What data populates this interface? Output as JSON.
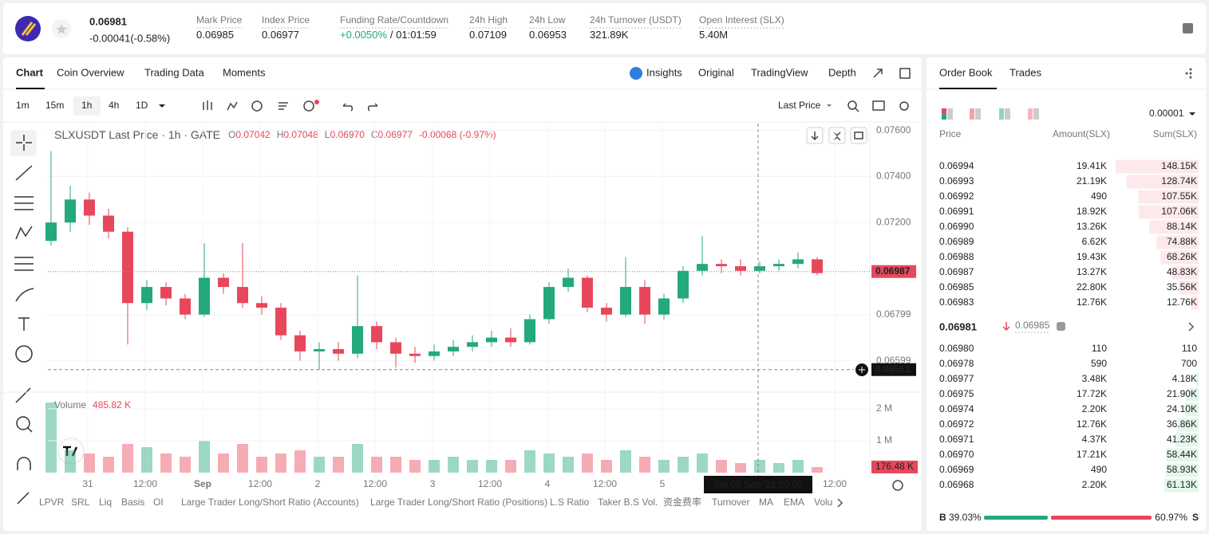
{
  "header": {
    "price": "0.06981",
    "change": "-0.00041(-0.58%)",
    "stats": [
      {
        "label": "Mark Price",
        "value": "0.06985"
      },
      {
        "label": "Index Price",
        "value": "0.06977"
      },
      {
        "label": "Funding Rate/Countdown",
        "value": "+0.0050%",
        "extra": "/ 01:01:59"
      },
      {
        "label": "24h High",
        "value": "0.07109"
      },
      {
        "label": "24h Low",
        "value": "0.06953"
      },
      {
        "label": "24h Turnover (USDT)",
        "value": "321.89K"
      },
      {
        "label": "Open Interest (SLX)",
        "value": "5.40M"
      }
    ]
  },
  "tabs": {
    "left": [
      "Chart",
      "Coin Overview",
      "Trading Data",
      "Moments"
    ],
    "right": [
      "Insights",
      "Original",
      "TradingView",
      "Depth"
    ]
  },
  "toolbar": {
    "intervals": [
      "1m",
      "15m",
      "1h",
      "4h",
      "1D"
    ],
    "price_source": "Last Price"
  },
  "chart_data": {
    "type": "candlestick",
    "title": "SLXUSDT Last Price · 1h · GATE",
    "ohlc_legend": [
      {
        "label": "O",
        "value": "0.07042"
      },
      {
        "label": "H",
        "value": "0.07048"
      },
      {
        "label": "L",
        "value": "0.06970"
      },
      {
        "label": "C",
        "value": "0.06977"
      }
    ],
    "legend_change": "-0.00068 (-0.97%)",
    "open": [
      0.0712,
      0.072,
      0.073,
      0.0723,
      0.0716,
      0.0685,
      0.0692,
      0.0687,
      0.068,
      0.0696,
      0.0692,
      0.0685,
      0.0683,
      0.0671,
      0.0664,
      0.0665,
      0.0663,
      0.0675,
      0.0668,
      0.0663,
      0.0662,
      0.0664,
      0.0666,
      0.0668,
      0.067,
      0.0668,
      0.0678,
      0.0692,
      0.0696,
      0.0683,
      0.068,
      0.0692,
      0.068,
      0.0687,
      0.0699,
      0.0702,
      0.0701,
      0.0699,
      0.0701,
      0.0702,
      0.0704
    ],
    "high": [
      0.0751,
      0.0736,
      0.0733,
      0.0726,
      0.0718,
      0.0695,
      0.0694,
      0.0689,
      0.0711,
      0.0698,
      0.0711,
      0.0688,
      0.0685,
      0.0673,
      0.0668,
      0.0668,
      0.0697,
      0.0677,
      0.067,
      0.0666,
      0.0667,
      0.0669,
      0.0671,
      0.0673,
      0.0674,
      0.068,
      0.0694,
      0.07,
      0.0697,
      0.0685,
      0.0705,
      0.0695,
      0.0689,
      0.0701,
      0.0714,
      0.0704,
      0.0704,
      0.0703,
      0.0704,
      0.0707,
      0.0705
    ],
    "low": [
      0.071,
      0.0716,
      0.0719,
      0.0713,
      0.0667,
      0.0682,
      0.0684,
      0.0678,
      0.0679,
      0.0689,
      0.0683,
      0.068,
      0.0669,
      0.066,
      0.0656,
      0.066,
      0.0661,
      0.0665,
      0.0657,
      0.0659,
      0.066,
      0.0662,
      0.0664,
      0.0666,
      0.0666,
      0.0667,
      0.0676,
      0.069,
      0.0681,
      0.0677,
      0.0679,
      0.0676,
      0.0678,
      0.0685,
      0.0697,
      0.0698,
      0.0697,
      0.0698,
      0.0699,
      0.07,
      0.0697
    ],
    "close": [
      0.072,
      0.073,
      0.0723,
      0.0716,
      0.0685,
      0.0692,
      0.0687,
      0.068,
      0.0696,
      0.0692,
      0.0685,
      0.0683,
      0.0671,
      0.0664,
      0.0665,
      0.0663,
      0.0675,
      0.0668,
      0.0663,
      0.0662,
      0.0664,
      0.0666,
      0.0668,
      0.067,
      0.0668,
      0.0678,
      0.0692,
      0.0696,
      0.0683,
      0.068,
      0.0692,
      0.068,
      0.0687,
      0.0699,
      0.0702,
      0.0701,
      0.0699,
      0.0701,
      0.0702,
      0.0704,
      0.0698
    ],
    "colors": {
      "up": "#23a97a",
      "down": "#e8475b"
    },
    "ylim": [
      0.0647,
      0.0763
    ],
    "yticks": [
      {
        "value": 0.076,
        "label": "0.07600"
      },
      {
        "value": 0.074,
        "label": "0.07400"
      },
      {
        "value": 0.072,
        "label": "0.07200"
      },
      0.06799,
      0.06599
    ],
    "grid": true,
    "price_tags": [
      {
        "value": 0.06987,
        "label": "0.06987"
      },
      {
        "value": 0.06561,
        "label": "0.06561"
      }
    ],
    "x_labels": [
      "31",
      "12:00",
      "Sep",
      "12:00",
      "2",
      "12:00",
      "3",
      "12:00",
      "4",
      "12:00",
      "5",
      null,
      null,
      "12:00"
    ],
    "crosshair_label": "Sat 05 Sep '26  20:00",
    "volume": {
      "title": "Volume",
      "current": "485.82 K",
      "values": [
        2200000,
        700000,
        600000,
        500000,
        900000,
        800000,
        600000,
        500000,
        1000000,
        600000,
        900000,
        500000,
        600000,
        700000,
        500000,
        500000,
        900000,
        500000,
        500000,
        400000,
        400000,
        500000,
        400000,
        400000,
        400000,
        700000,
        600000,
        500000,
        600000,
        400000,
        700000,
        500000,
        400000,
        500000,
        600000,
        400000,
        300000,
        400000,
        300000,
        400000,
        176480
      ],
      "ylim": [
        0,
        2500000
      ],
      "yticks": [
        {
          "value": 2000000,
          "label": "2 M"
        },
        {
          "value": 1000000,
          "label": "1 M"
        }
      ],
      "tag": {
        "value": 176480,
        "label": "176.48 K"
      }
    }
  },
  "indicators": [
    "LPVR",
    "SRL",
    "Liq",
    "Basis",
    "OI",
    "Large Trader Long/Short Ratio (Accounts)",
    "Large Trader Long/Short Ratio (Positions)",
    "L.S Ratio",
    "Taker B.S Vol.",
    "资金费率",
    "Turnover",
    "MA",
    "EMA",
    "Volu"
  ],
  "order_book": {
    "tabs": [
      "Order Book",
      "Trades"
    ],
    "precision": "0.00001",
    "columns": [
      "Price",
      "Amount(SLX)",
      "Sum(SLX)"
    ],
    "asks": [
      {
        "price": "0.06994",
        "amount": "19.41K",
        "sum": {
          "value": 148150,
          "label": "148.15K"
        }
      },
      {
        "price": "0.06993",
        "amount": "21.19K",
        "sum": {
          "value": 128740,
          "label": "128.74K"
        }
      },
      {
        "price": "0.06992",
        "amount": "490",
        "sum": {
          "value": 107550,
          "label": "107.55K"
        }
      },
      {
        "price": "0.06991",
        "amount": "18.92K",
        "sum": {
          "value": 107060,
          "label": "107.06K"
        }
      },
      {
        "price": "0.06990",
        "amount": "13.26K",
        "sum": {
          "value": 88140,
          "label": "88.14K"
        }
      },
      {
        "price": "0.06989",
        "amount": "6.62K",
        "sum": {
          "value": 74880,
          "label": "74.88K"
        }
      },
      {
        "price": "0.06988",
        "amount": "19.43K",
        "sum": {
          "value": 68260,
          "label": "68.26K"
        }
      },
      {
        "price": "0.06987",
        "amount": "13.27K",
        "sum": {
          "value": 48830,
          "label": "48.83K"
        }
      },
      {
        "price": "0.06985",
        "amount": "22.80K",
        "sum": {
          "value": 35560,
          "label": "35.56K"
        }
      },
      {
        "price": "0.06983",
        "amount": "12.76K",
        "sum": {
          "value": 12760,
          "label": "12.76K"
        }
      }
    ],
    "mid_price": "0.06981",
    "mark_price": "0.06985",
    "bids": [
      {
        "price": "0.06980",
        "amount": "110",
        "sum": {
          "value": 110,
          "label": "110"
        }
      },
      {
        "price": "0.06978",
        "amount": "590",
        "sum": {
          "value": 700,
          "label": "700"
        }
      },
      {
        "price": "0.06977",
        "amount": "3.48K",
        "sum": {
          "value": 4180,
          "label": "4.18K"
        }
      },
      {
        "price": "0.06975",
        "amount": "17.72K",
        "sum": {
          "value": 21900,
          "label": "21.90K"
        }
      },
      {
        "price": "0.06974",
        "amount": "2.20K",
        "sum": {
          "value": 24100,
          "label": "24.10K"
        }
      },
      {
        "price": "0.06972",
        "amount": "12.76K",
        "sum": {
          "value": 36860,
          "label": "36.86K"
        }
      },
      {
        "price": "0.06971",
        "amount": "4.37K",
        "sum": {
          "value": 41230,
          "label": "41.23K"
        }
      },
      {
        "price": "0.06970",
        "amount": "17.21K",
        "sum": {
          "value": 58440,
          "label": "58.44K"
        }
      },
      {
        "price": "0.06969",
        "amount": "490",
        "sum": {
          "value": 58930,
          "label": "58.93K"
        }
      },
      {
        "price": "0.06968",
        "amount": "2.20K",
        "sum": {
          "value": 61130,
          "label": "61.13K"
        }
      }
    ],
    "ratio": {
      "buy_letter": "B",
      "sell_letter": "S",
      "buy": {
        "value": 39.03,
        "label": "39.03%"
      },
      "sell": {
        "value": 60.97,
        "label": "60.97%"
      }
    }
  }
}
